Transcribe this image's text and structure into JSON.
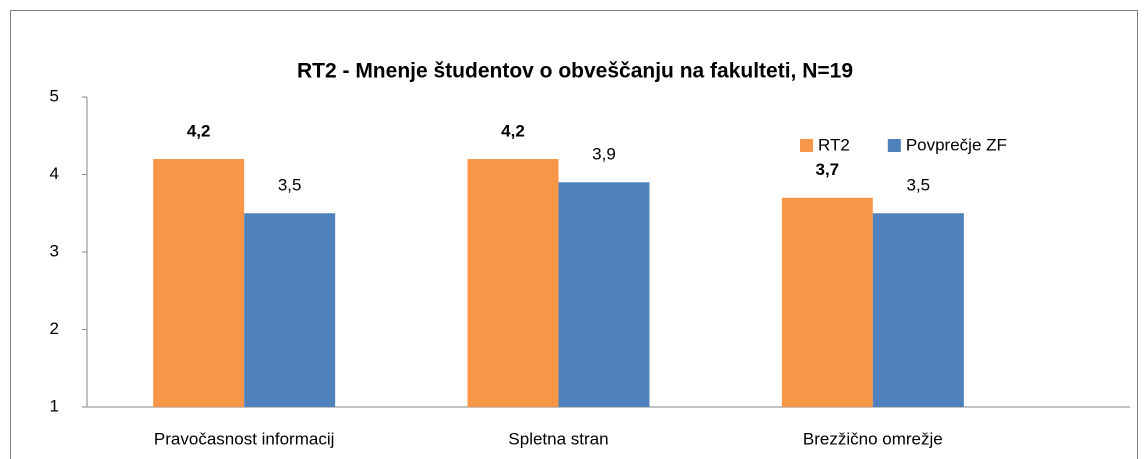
{
  "chart_data": {
    "type": "bar",
    "title": "RT2 - Mnenje študentov o obveščanju na fakulteti, N=19",
    "categories": [
      "Pravočasnost informacij",
      "Spletna stran",
      "Brezžično omrežje"
    ],
    "series": [
      {
        "name": "RT2",
        "color": "#f79646",
        "values": [
          4.2,
          4.2,
          3.7
        ],
        "value_labels": [
          "4,2",
          "4,2",
          "3,7"
        ]
      },
      {
        "name": "Povprečje ZF",
        "color": "#4f81bd",
        "values": [
          3.5,
          3.9,
          3.5
        ],
        "value_labels": [
          "3,5",
          "3,9",
          "3,5"
        ]
      }
    ],
    "ylim": [
      1,
      5
    ],
    "yticks": [
      1,
      2,
      3,
      4,
      5
    ],
    "grid": false,
    "legend": "top-right"
  }
}
